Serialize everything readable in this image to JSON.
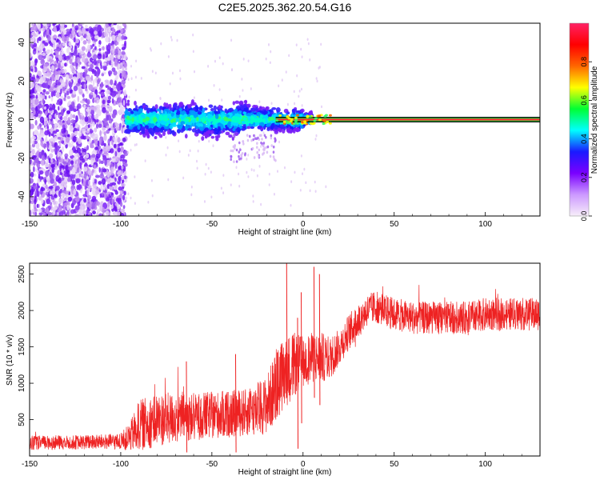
{
  "title": "C2E5.2025.362.20.54.G16",
  "chart_data": [
    {
      "type": "heatmap",
      "xlabel": "Height of straight line (km)",
      "ylabel": "Frequency (Hz)",
      "xlim": [
        -150,
        130
      ],
      "ylim": [
        -50,
        50
      ],
      "x_ticks": [
        -150,
        -100,
        -50,
        0,
        50,
        100
      ],
      "y_ticks": [
        -40,
        -20,
        0,
        20,
        40
      ],
      "grid": false,
      "description_values": {
        "noise_region_x": [
          -150,
          -97
        ],
        "transition_region_x": [
          -97,
          -15
        ],
        "coherent_line_x": [
          -15,
          130
        ],
        "line_frequency_hz": 0,
        "line_halfwidth_hz": 1
      },
      "colorbar": {
        "label": "Normalized spectral amplitude",
        "range": [
          0,
          1
        ],
        "ticks": [
          "0.0",
          "0.2",
          "0.4",
          "0.6",
          "0.8"
        ],
        "tick_values": [
          0,
          0.2,
          0.4,
          0.6,
          0.8
        ],
        "colors": [
          "#f7eef9",
          "#cc99ff",
          "#7a00ff",
          "#1a1aff",
          "#00ffff",
          "#00ff33",
          "#ffff00",
          "#ff6600",
          "#ff0000",
          "#ff2266"
        ]
      }
    },
    {
      "type": "line",
      "xlabel": "Height of straight line (km)",
      "ylabel": "SNR (10 * v/v)",
      "xlim": [
        -150,
        130
      ],
      "ylim": [
        0,
        2650
      ],
      "x_ticks": [
        -150,
        -100,
        -50,
        0,
        50,
        100
      ],
      "y_ticks": [
        500,
        1000,
        1500,
        2000,
        2500
      ],
      "grid": false,
      "color": "#ee2222",
      "envelope": {
        "x": [
          -150,
          -120,
          -100,
          -95,
          -90,
          -80,
          -70,
          -60,
          -50,
          -40,
          -30,
          -20,
          -15,
          -10,
          -5,
          0,
          5,
          10,
          15,
          20,
          25,
          30,
          35,
          40,
          50,
          60,
          70,
          80,
          90,
          100,
          110,
          120,
          130
        ],
        "mean": [
          180,
          190,
          200,
          260,
          420,
          500,
          520,
          540,
          560,
          580,
          600,
          700,
          950,
          1150,
          1250,
          1300,
          1350,
          1350,
          1350,
          1500,
          1700,
          1850,
          2000,
          2050,
          1950,
          1900,
          1900,
          1900,
          1900,
          1950,
          1950,
          1950,
          1950
        ],
        "spread": [
          200,
          200,
          220,
          400,
          700,
          750,
          700,
          650,
          650,
          650,
          650,
          800,
          1000,
          1000,
          900,
          700,
          700,
          700,
          600,
          500,
          500,
          500,
          450,
          450,
          450,
          450,
          450,
          450,
          450,
          450,
          450,
          450,
          450
        ]
      },
      "spikes": [
        {
          "x": -9,
          "y": 2650
        },
        {
          "x": -1,
          "y": 2250
        },
        {
          "x": 6,
          "y": 2600
        },
        {
          "x": 9,
          "y": 2500
        },
        {
          "x": -3,
          "y": 1900
        },
        {
          "x": -37,
          "y": 1400
        },
        {
          "x": -64,
          "y": 1300
        }
      ]
    }
  ]
}
